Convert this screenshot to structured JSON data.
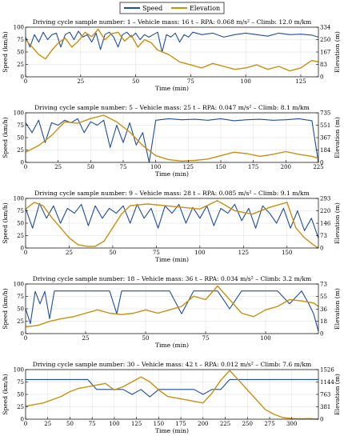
{
  "legend": {
    "items": [
      {
        "label": "Speed",
        "color": "#1f4e9c"
      },
      {
        "label": "Elevation",
        "color": "#c8900e"
      }
    ]
  },
  "chart_data": [
    {
      "type": "line",
      "title": "Driving cycle sample number: 1 – Vehicle mass: 16 t – RPA: 0.068 m/s² – Climb: 12.0 m/km",
      "xlabel": "Time (min)",
      "ylabel": "Speed (km/h)",
      "y2label": "Elevation (m)",
      "xlim": [
        0,
        133
      ],
      "ylim": [
        0,
        100
      ],
      "y2lim": [
        0,
        334
      ],
      "xticks": [
        0,
        25,
        50,
        75,
        100,
        125
      ],
      "yticks": [
        0,
        25,
        50,
        75,
        100
      ],
      "y2ticks": [
        0,
        83,
        167,
        250,
        334
      ],
      "series": [
        {
          "name": "Speed",
          "x": [
            0,
            2,
            4,
            6,
            8,
            10,
            12,
            14,
            16,
            18,
            20,
            22,
            24,
            26,
            28,
            30,
            32,
            34,
            36,
            38,
            40,
            42,
            44,
            46,
            48,
            50,
            52,
            54,
            56,
            58,
            60,
            62,
            64,
            66,
            68,
            70,
            72,
            74,
            76,
            80,
            85,
            90,
            95,
            100,
            105,
            110,
            115,
            120,
            125,
            130,
            133
          ],
          "y": [
            80,
            60,
            85,
            70,
            90,
            75,
            85,
            88,
            60,
            85,
            90,
            75,
            92,
            80,
            85,
            70,
            88,
            55,
            85,
            90,
            80,
            60,
            85,
            90,
            80,
            88,
            75,
            85,
            80,
            85,
            90,
            50,
            85,
            80,
            88,
            70,
            85,
            80,
            90,
            85,
            88,
            80,
            85,
            88,
            85,
            82,
            88,
            85,
            86,
            84,
            80
          ]
        },
        {
          "name": "Elevation",
          "x": [
            0,
            3,
            6,
            9,
            12,
            15,
            18,
            21,
            24,
            27,
            30,
            33,
            36,
            39,
            42,
            45,
            48,
            51,
            54,
            57,
            60,
            65,
            70,
            75,
            80,
            85,
            90,
            95,
            100,
            105,
            110,
            115,
            120,
            125,
            130,
            133
          ],
          "y": [
            250,
            200,
            150,
            120,
            180,
            230,
            260,
            200,
            240,
            300,
            270,
            320,
            250,
            290,
            300,
            240,
            280,
            200,
            250,
            230,
            180,
            150,
            100,
            80,
            60,
            90,
            70,
            50,
            60,
            80,
            50,
            70,
            40,
            60,
            110,
            100
          ]
        }
      ]
    },
    {
      "type": "line",
      "title": "Driving cycle sample number: 5 – Vehicle mass: 25 t – RPA: 0.047 m/s² – Climb: 8.1 m/km",
      "xlabel": "Time (min)",
      "ylabel": "Speed (km/h)",
      "y2label": "Elevation (m)",
      "xlim": [
        0,
        225
      ],
      "ylim": [
        0,
        100
      ],
      "y2lim": [
        0,
        735
      ],
      "xticks": [
        0,
        25,
        50,
        75,
        100,
        125,
        150,
        175,
        200,
        225
      ],
      "yticks": [
        0,
        25,
        50,
        75,
        100
      ],
      "y2ticks": [
        0,
        184,
        367,
        551,
        735
      ],
      "series": [
        {
          "name": "Speed",
          "x": [
            0,
            5,
            10,
            15,
            20,
            25,
            30,
            35,
            40,
            45,
            50,
            55,
            60,
            65,
            70,
            75,
            80,
            85,
            90,
            95,
            100,
            110,
            120,
            130,
            140,
            150,
            160,
            170,
            180,
            190,
            200,
            210,
            220,
            225
          ],
          "y": [
            80,
            60,
            85,
            40,
            80,
            75,
            85,
            80,
            88,
            60,
            82,
            75,
            85,
            30,
            75,
            40,
            80,
            35,
            60,
            0,
            85,
            88,
            86,
            87,
            85,
            88,
            84,
            86,
            87,
            85,
            86,
            88,
            84,
            0
          ]
        },
        {
          "name": "Elevation",
          "x": [
            0,
            10,
            20,
            30,
            40,
            50,
            60,
            70,
            80,
            90,
            100,
            110,
            120,
            130,
            140,
            150,
            160,
            170,
            180,
            190,
            200,
            210,
            220,
            225
          ],
          "y": [
            150,
            250,
            400,
            600,
            580,
            650,
            700,
            600,
            450,
            250,
            100,
            40,
            20,
            30,
            50,
            100,
            150,
            130,
            90,
            120,
            160,
            120,
            90,
            60
          ]
        }
      ]
    },
    {
      "type": "line",
      "title": "Driving cycle sample number: 9 – Vehicle mass: 28 t – RPA: 0.085 m/s² – Climb: 9.1 m/km",
      "xlabel": "Time (min)",
      "ylabel": "Speed (km/h)",
      "y2label": "Elevation (m)",
      "xlim": [
        0,
        168
      ],
      "ylim": [
        0,
        100
      ],
      "y2lim": [
        0,
        293
      ],
      "xticks": [
        0,
        25,
        50,
        75,
        100,
        125,
        150
      ],
      "yticks": [
        0,
        25,
        50,
        75,
        100
      ],
      "y2ticks": [
        0,
        73,
        146,
        220,
        293
      ],
      "series": [
        {
          "name": "Speed",
          "x": [
            0,
            4,
            8,
            12,
            16,
            20,
            24,
            28,
            32,
            36,
            40,
            44,
            48,
            52,
            56,
            60,
            64,
            68,
            72,
            76,
            80,
            84,
            88,
            92,
            96,
            100,
            104,
            108,
            112,
            116,
            120,
            124,
            128,
            132,
            136,
            140,
            144,
            148,
            152,
            156,
            160,
            164,
            168
          ],
          "y": [
            80,
            40,
            90,
            60,
            85,
            50,
            80,
            70,
            88,
            45,
            85,
            60,
            80,
            70,
            85,
            50,
            88,
            60,
            80,
            40,
            85,
            70,
            88,
            50,
            82,
            60,
            85,
            45,
            80,
            70,
            88,
            55,
            80,
            40,
            85,
            70,
            50,
            80,
            40,
            75,
            35,
            60,
            20
          ]
        },
        {
          "name": "Elevation",
          "x": [
            0,
            5,
            10,
            15,
            20,
            25,
            30,
            35,
            40,
            45,
            50,
            55,
            60,
            70,
            80,
            90,
            100,
            110,
            120,
            130,
            140,
            150,
            155,
            160,
            165,
            168
          ],
          "y": [
            230,
            270,
            250,
            180,
            120,
            60,
            20,
            10,
            10,
            40,
            120,
            200,
            250,
            260,
            250,
            240,
            230,
            280,
            220,
            200,
            240,
            270,
            120,
            60,
            20,
            0
          ]
        }
      ]
    },
    {
      "type": "line",
      "title": "Driving cycle sample number: 18 – Vehicle mass: 36 t – RPA: 0.034 m/s² – Climb: 3.2 m/km",
      "xlabel": "Time (min)",
      "ylabel": "Speed (km/h)",
      "y2label": "Elevation (m)",
      "xlim": [
        0,
        122
      ],
      "ylim": [
        0,
        100
      ],
      "y2lim": [
        0,
        73
      ],
      "xticks": [
        0,
        25,
        50,
        75,
        100
      ],
      "yticks": [
        0,
        25,
        50,
        75,
        100
      ],
      "y2ticks": [
        0,
        18,
        36,
        55,
        73
      ],
      "series": [
        {
          "name": "Speed",
          "x": [
            0,
            2,
            4,
            6,
            8,
            10,
            12,
            15,
            20,
            25,
            30,
            35,
            38,
            40,
            45,
            50,
            55,
            60,
            65,
            70,
            75,
            80,
            85,
            90,
            95,
            100,
            105,
            110,
            115,
            118,
            120,
            122
          ],
          "y": [
            50,
            20,
            85,
            60,
            85,
            30,
            86,
            86,
            86,
            86,
            86,
            86,
            40,
            86,
            86,
            86,
            86,
            86,
            40,
            86,
            86,
            86,
            50,
            86,
            86,
            86,
            86,
            60,
            86,
            60,
            40,
            5
          ]
        },
        {
          "name": "Elevation",
          "x": [
            0,
            5,
            10,
            15,
            20,
            25,
            30,
            35,
            40,
            45,
            50,
            55,
            60,
            65,
            70,
            75,
            80,
            85,
            90,
            95,
            100,
            105,
            110,
            115,
            120,
            122
          ],
          "y": [
            10,
            12,
            18,
            22,
            25,
            30,
            35,
            30,
            28,
            30,
            35,
            30,
            35,
            40,
            55,
            50,
            70,
            50,
            30,
            25,
            35,
            40,
            50,
            48,
            45,
            40
          ]
        }
      ]
    },
    {
      "type": "line",
      "title": "Driving cycle sample number: 30 – Vehicle mass: 42 t – RPA: 0.012 m/s² – Climb: 7.6 m/km",
      "xlabel": "Time (min)",
      "ylabel": "Speed (km/h)",
      "y2label": "Elevation (m)",
      "xlim": [
        0,
        330
      ],
      "ylim": [
        0,
        100
      ],
      "y2lim": [
        0,
        1526
      ],
      "xticks": [
        0,
        25,
        50,
        75,
        100,
        125,
        150,
        175,
        200,
        225,
        250,
        275,
        300
      ],
      "yticks": [
        0,
        25,
        50,
        75,
        100
      ],
      "y2ticks": [
        0,
        381,
        763,
        1144,
        1526
      ],
      "series": [
        {
          "name": "Speed",
          "x": [
            0,
            10,
            20,
            30,
            40,
            50,
            60,
            70,
            80,
            90,
            100,
            110,
            120,
            130,
            140,
            150,
            160,
            170,
            180,
            190,
            200,
            210,
            220,
            230,
            240,
            250,
            260,
            270,
            280,
            290,
            300,
            310,
            320,
            330
          ],
          "y": [
            80,
            80,
            80,
            80,
            80,
            80,
            80,
            80,
            60,
            60,
            60,
            60,
            50,
            60,
            45,
            60,
            60,
            60,
            60,
            60,
            50,
            60,
            60,
            80,
            80,
            80,
            80,
            80,
            80,
            80,
            80,
            80,
            80,
            80
          ]
        },
        {
          "name": "Elevation",
          "x": [
            0,
            10,
            20,
            30,
            40,
            50,
            60,
            70,
            80,
            90,
            100,
            110,
            120,
            130,
            140,
            150,
            160,
            170,
            180,
            190,
            200,
            210,
            220,
            230,
            240,
            250,
            260,
            270,
            280,
            290,
            300,
            310,
            320,
            330
          ],
          "y": [
            400,
            450,
            500,
            600,
            700,
            850,
            950,
            1000,
            1050,
            1100,
            900,
            1000,
            1150,
            1300,
            1150,
            900,
            700,
            650,
            600,
            550,
            500,
            800,
            1200,
            1500,
            1200,
            900,
            600,
            300,
            150,
            50,
            20,
            10,
            20,
            0
          ]
        }
      ]
    }
  ]
}
